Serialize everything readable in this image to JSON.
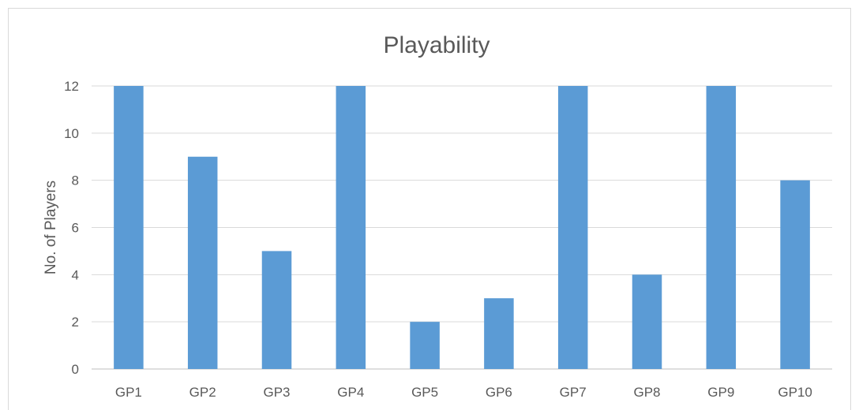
{
  "chart_data": {
    "type": "bar",
    "title": "Playability",
    "xlabel": "",
    "ylabel": "No. of Players",
    "categories": [
      "GP1",
      "GP2",
      "GP3",
      "GP4",
      "GP5",
      "GP6",
      "GP7",
      "GP8",
      "GP9",
      "GP10"
    ],
    "values": [
      12,
      9,
      5,
      12,
      2,
      3,
      12,
      4,
      12,
      8
    ],
    "ylim": [
      0,
      12
    ],
    "yticks": [
      "0",
      "2",
      "4",
      "6",
      "8",
      "10",
      "12"
    ],
    "grid": true,
    "legend": "none",
    "bar_color": "#5b9bd5"
  }
}
